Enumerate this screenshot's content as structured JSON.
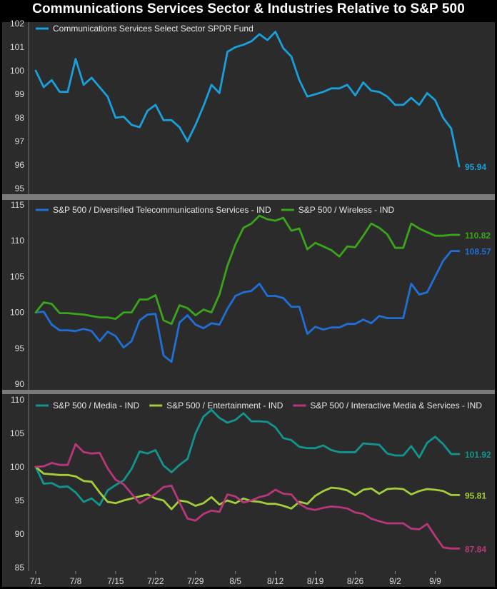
{
  "title": "Communications Services Sector & Industries Relative to S&P 500",
  "x_ticks": [
    "7/1",
    "7/8",
    "7/15",
    "7/22",
    "7/29",
    "8/5",
    "8/12",
    "8/19",
    "8/26",
    "9/2",
    "9/9"
  ],
  "chart_data": [
    {
      "type": "line",
      "ylim": [
        95,
        102
      ],
      "yticks": [
        95,
        96,
        97,
        98,
        99,
        100,
        101,
        102
      ],
      "grid": false,
      "legend_position": "top-left",
      "series": [
        {
          "name": "Communications Services Select Sector SPDR Fund",
          "color": "#1a9fdb",
          "end_label": "95.94",
          "values": [
            100.0,
            99.3,
            99.6,
            99.1,
            99.1,
            100.5,
            99.4,
            99.7,
            99.3,
            98.9,
            98.0,
            98.05,
            97.7,
            97.6,
            98.3,
            98.55,
            97.9,
            97.9,
            97.6,
            97.0,
            97.7,
            98.5,
            99.4,
            99.05,
            100.8,
            101.0,
            101.1,
            101.25,
            101.55,
            101.3,
            101.65,
            100.95,
            100.6,
            99.6,
            98.9,
            99.0,
            99.1,
            99.25,
            99.25,
            99.4,
            98.95,
            99.5,
            99.15,
            99.1,
            98.9,
            98.55,
            98.55,
            98.85,
            98.55,
            99.05,
            98.75,
            98.0,
            97.55,
            95.94
          ]
        }
      ]
    },
    {
      "type": "line",
      "ylim": [
        90,
        115
      ],
      "yticks": [
        90,
        95,
        100,
        105,
        110,
        115
      ],
      "grid": false,
      "legend_position": "top-left",
      "series": [
        {
          "name": "S&P 500 / Diversified Telecommunications Services - IND",
          "color": "#1f6fd6",
          "end_label": "108.57",
          "values": [
            100.0,
            100.1,
            98.3,
            97.5,
            97.5,
            97.4,
            97.7,
            97.4,
            96.0,
            97.3,
            96.7,
            95.1,
            96.0,
            98.9,
            99.7,
            99.8,
            94.0,
            93.1,
            98.6,
            99.6,
            98.3,
            97.8,
            98.5,
            98.3,
            100.5,
            102.3,
            102.8,
            103.0,
            104.0,
            102.3,
            102.3,
            102.0,
            100.8,
            100.8,
            97.0,
            98.0,
            97.6,
            97.9,
            97.9,
            98.4,
            98.4,
            99.0,
            98.5,
            99.5,
            99.2,
            99.2,
            99.2,
            104.0,
            102.5,
            102.8,
            105.0,
            107.2,
            108.57,
            108.57
          ]
        },
        {
          "name": "S&P 500 / Wireless - IND",
          "color": "#3aa51c",
          "end_label": "110.82",
          "values": [
            100.0,
            101.4,
            101.2,
            99.9,
            99.9,
            99.8,
            99.7,
            99.5,
            99.3,
            99.3,
            99.1,
            100.0,
            100.0,
            101.8,
            101.8,
            102.4,
            98.9,
            98.4,
            101.0,
            100.6,
            99.6,
            100.4,
            100.0,
            102.5,
            106.5,
            109.5,
            111.8,
            112.4,
            113.5,
            113.0,
            112.8,
            113.2,
            111.4,
            111.7,
            108.8,
            109.7,
            109.2,
            108.7,
            107.8,
            109.2,
            109.1,
            110.7,
            112.4,
            111.8,
            110.9,
            109.0,
            109.0,
            112.4,
            111.7,
            111.2,
            110.7,
            110.7,
            110.82,
            110.82
          ]
        }
      ]
    },
    {
      "type": "line",
      "ylim": [
        85,
        110
      ],
      "yticks": [
        85,
        90,
        95,
        100,
        105,
        110
      ],
      "grid": false,
      "legend_position": "top-left",
      "series": [
        {
          "name": "S&P 500 / Media - IND",
          "color": "#13958f",
          "end_label": "101.92",
          "values": [
            100.0,
            97.5,
            97.6,
            97.0,
            97.1,
            96.2,
            94.8,
            95.3,
            94.3,
            96.5,
            97.3,
            98.0,
            99.7,
            102.3,
            102.0,
            102.5,
            100.2,
            99.2,
            100.3,
            101.2,
            105.0,
            107.5,
            108.5,
            107.3,
            106.6,
            107.0,
            108.0,
            106.8,
            106.8,
            106.7,
            105.9,
            104.3,
            104.0,
            103.0,
            102.8,
            102.8,
            103.2,
            102.5,
            102.2,
            102.2,
            102.2,
            103.5,
            103.4,
            103.3,
            102.0,
            101.7,
            101.7,
            103.1,
            101.4,
            103.6,
            104.5,
            103.4,
            101.92,
            101.92
          ]
        },
        {
          "name": "S&P 500 / Entertainment - IND",
          "color": "#a2ce3c",
          "end_label": "95.81",
          "values": [
            100.0,
            99.0,
            98.9,
            98.8,
            98.8,
            98.6,
            97.9,
            97.8,
            96.2,
            94.8,
            94.6,
            95.0,
            95.3,
            95.6,
            95.9,
            95.3,
            95.0,
            93.7,
            95.0,
            94.8,
            94.2,
            94.6,
            95.5,
            94.4,
            95.0,
            94.6,
            95.3,
            94.9,
            94.8,
            94.5,
            94.5,
            94.2,
            93.8,
            94.8,
            94.5,
            95.7,
            96.4,
            96.9,
            96.8,
            96.5,
            95.8,
            96.6,
            96.8,
            96.0,
            96.7,
            96.8,
            96.7,
            95.9,
            96.4,
            96.7,
            96.6,
            96.4,
            95.81,
            95.81
          ]
        },
        {
          "name": "S&P 500 / Interactive Media & Services - IND",
          "color": "#b8377a",
          "end_label": "87.84",
          "values": [
            100.0,
            100.1,
            100.6,
            100.3,
            100.3,
            103.4,
            102.2,
            102.0,
            102.1,
            99.8,
            98.1,
            97.4,
            96.0,
            94.6,
            95.3,
            96.0,
            97.0,
            97.2,
            94.7,
            92.3,
            92.0,
            93.0,
            93.5,
            93.3,
            95.9,
            95.6,
            94.7,
            95.0,
            95.5,
            95.8,
            96.6,
            96.0,
            95.9,
            94.5,
            93.8,
            93.6,
            93.9,
            94.1,
            94.0,
            93.8,
            93.2,
            93.0,
            92.3,
            91.9,
            91.6,
            91.6,
            91.6,
            90.8,
            90.7,
            91.5,
            89.7,
            88.0,
            87.84,
            87.84
          ]
        }
      ]
    }
  ]
}
